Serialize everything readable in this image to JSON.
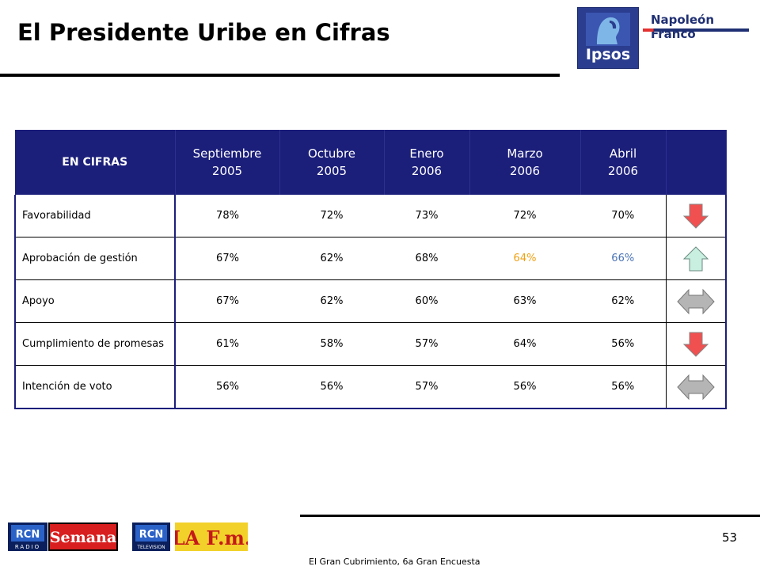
{
  "header": {
    "title": "El Presidente Uribe en Cifras",
    "ipsos_logo_text": "Ipsos",
    "brand_name": "Napoleón Franco"
  },
  "table": {
    "header_label": "EN CIFRAS",
    "columns": [
      {
        "month": "Septiembre",
        "year": "2005"
      },
      {
        "month": "Octubre",
        "year": "2005"
      },
      {
        "month": "Enero",
        "year": "2006"
      },
      {
        "month": "Marzo",
        "year": "2006"
      },
      {
        "month": "Abril",
        "year": "2006"
      }
    ],
    "rows": [
      {
        "label": "Favorabilidad",
        "values": [
          "78%",
          "72%",
          "73%",
          "72%",
          "70%"
        ],
        "trend": "down-red-arrow-icon"
      },
      {
        "label": "Aprobación de gestión",
        "values": [
          "67%",
          "62%",
          "68%",
          "64%",
          "66%"
        ],
        "trend": "up-green-arrow-icon"
      },
      {
        "label": "Apoyo",
        "values": [
          "67%",
          "62%",
          "60%",
          "63%",
          "62%"
        ],
        "trend": "horizontal-gray-arrow-icon"
      },
      {
        "label": "Cumplimiento de promesas",
        "values": [
          "61%",
          "58%",
          "57%",
          "64%",
          "56%"
        ],
        "trend": "down-red-arrow-icon"
      },
      {
        "label": "Intención de voto",
        "values": [
          "56%",
          "56%",
          "57%",
          "56%",
          "56%"
        ],
        "trend": "horizontal-gray-arrow-icon"
      }
    ],
    "colors": {
      "header_bg": "#1c1f7a",
      "highlight_orange": "#f0a010",
      "highlight_blue": "#4a73b5",
      "arrow_down": "#f05050",
      "arrow_up": "#c9efe0",
      "arrow_flat": "#b5b5b5"
    }
  },
  "footer": {
    "page_number": "53",
    "caption": "El Gran Cubrimiento, 6a Gran Encuesta",
    "logos": {
      "rcn_radio_top": "RCN",
      "rcn_radio_bottom": "RADIO",
      "semana": "Semana",
      "rcn_tv_top": "RCN",
      "rcn_tv_bottom": "TELEVISION",
      "lafm": "LA F.m."
    }
  }
}
